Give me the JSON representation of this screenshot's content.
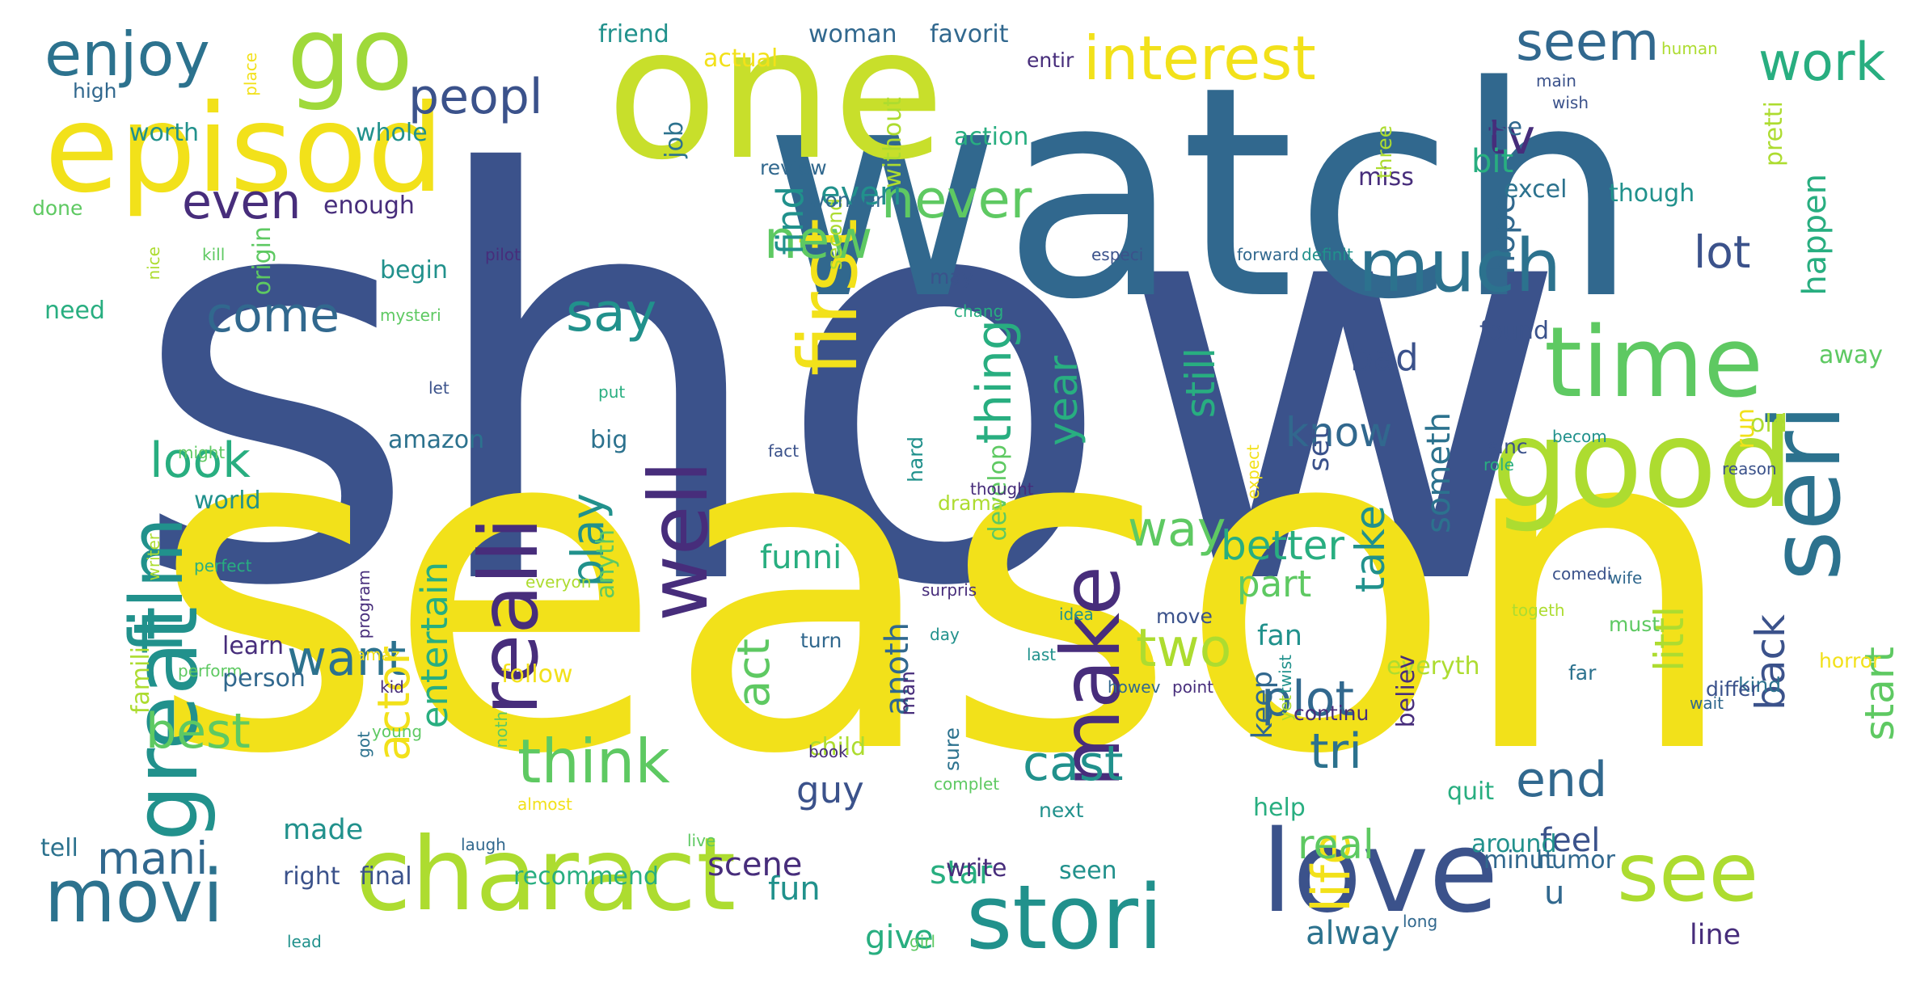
{
  "colors": {
    "background": "#ffffff",
    "palette": [
      "#3b528b",
      "#2c728e",
      "#21918c",
      "#28ae80",
      "#5ec962",
      "#addc30",
      "#f2e11a",
      "#440154",
      "#472d7b",
      "#31688e"
    ]
  },
  "words": [
    {
      "text": "show",
      "color": "#3b528b"
    },
    {
      "text": "season",
      "color": "#f2e11a"
    },
    {
      "text": "watch",
      "color": "#31688e"
    },
    {
      "text": "one",
      "color": "#c8df2b"
    },
    {
      "text": "episod",
      "color": "#f2e11a"
    },
    {
      "text": "go",
      "color": "#9fd93a"
    },
    {
      "text": "charact",
      "color": "#addc30"
    },
    {
      "text": "good",
      "color": "#addc30"
    },
    {
      "text": "love",
      "color": "#3b528b"
    },
    {
      "text": "movi",
      "color": "#2c728e"
    },
    {
      "text": "stori",
      "color": "#21918c"
    },
    {
      "text": "see",
      "color": "#addc30"
    },
    {
      "text": "time",
      "color": "#5ec962"
    },
    {
      "text": "seri",
      "color": "#2c728e"
    },
    {
      "text": "great",
      "color": "#21918c"
    },
    {
      "text": "film",
      "color": "#21918c"
    },
    {
      "text": "realli",
      "color": "#472d7b"
    },
    {
      "text": "well",
      "color": "#472d7b"
    },
    {
      "text": "make",
      "color": "#472d7b"
    },
    {
      "text": "first",
      "color": "#f2e11a"
    },
    {
      "text": "much",
      "color": "#2c728e"
    },
    {
      "text": "enjoy",
      "color": "#2c728e"
    },
    {
      "text": "peopl",
      "color": "#3b528b"
    },
    {
      "text": "interest",
      "color": "#f2e11a"
    },
    {
      "text": "seem",
      "color": "#31688e"
    },
    {
      "text": "work",
      "color": "#28ae80"
    },
    {
      "text": "even",
      "color": "#472d7b"
    },
    {
      "text": "come",
      "color": "#31688e"
    },
    {
      "text": "look",
      "color": "#28ae80"
    },
    {
      "text": "want",
      "color": "#2c728e"
    },
    {
      "text": "best",
      "color": "#5ec962"
    },
    {
      "text": "mani",
      "color": "#31688e"
    },
    {
      "text": "think",
      "color": "#5ec962"
    },
    {
      "text": "say",
      "color": "#21918c"
    },
    {
      "text": "play",
      "color": "#21918c"
    },
    {
      "text": "new",
      "color": "#5ec962"
    },
    {
      "text": "never",
      "color": "#5ec962"
    },
    {
      "text": "thing",
      "color": "#28ae80"
    },
    {
      "text": "year",
      "color": "#28ae80"
    },
    {
      "text": "know",
      "color": "#31688e"
    },
    {
      "text": "tv",
      "color": "#472d7b"
    },
    {
      "text": "lot",
      "color": "#3b528b"
    },
    {
      "text": "bad",
      "color": "#3b528b"
    },
    {
      "text": "way",
      "color": "#5ec962"
    },
    {
      "text": "better",
      "color": "#28ae80"
    },
    {
      "text": "still",
      "color": "#28ae80"
    },
    {
      "text": "take",
      "color": "#21918c"
    },
    {
      "text": "plot",
      "color": "#31688e"
    },
    {
      "text": "tri",
      "color": "#2c728e"
    },
    {
      "text": "two",
      "color": "#addc30"
    },
    {
      "text": "cast",
      "color": "#21918c"
    },
    {
      "text": "end",
      "color": "#31688e"
    },
    {
      "text": "back",
      "color": "#3b528b"
    },
    {
      "text": "start",
      "color": "#5ec962"
    },
    {
      "text": "littl",
      "color": "#addc30"
    },
    {
      "text": "life",
      "color": "#f2e11a"
    },
    {
      "text": "act",
      "color": "#5ec962"
    },
    {
      "text": "actor",
      "color": "#f2e11a"
    },
    {
      "text": "guy",
      "color": "#3b528b"
    },
    {
      "text": "fun",
      "color": "#21918c"
    },
    {
      "text": "find",
      "color": "#21918c"
    },
    {
      "text": "everi",
      "color": "#21918c"
    },
    {
      "text": "hope",
      "color": "#31688e"
    },
    {
      "text": "bit",
      "color": "#28ae80"
    },
    {
      "text": "happen",
      "color": "#28ae80"
    },
    {
      "text": "funni",
      "color": "#28ae80"
    },
    {
      "text": "entertain",
      "color": "#28ae80"
    },
    {
      "text": "part",
      "color": "#5ec962"
    },
    {
      "text": "fan",
      "color": "#21918c"
    },
    {
      "text": "keep",
      "color": "#31688e"
    },
    {
      "text": "real",
      "color": "#5ec962"
    },
    {
      "text": "feel",
      "color": "#3b528b"
    },
    {
      "text": "u",
      "color": "#31688e"
    },
    {
      "text": "alway",
      "color": "#2c728e"
    },
    {
      "text": "line",
      "color": "#472d7b"
    },
    {
      "text": "scene",
      "color": "#472d7b"
    },
    {
      "text": "star",
      "color": "#28ae80"
    },
    {
      "text": "give",
      "color": "#28ae80"
    },
    {
      "text": "made",
      "color": "#21918c"
    },
    {
      "text": "enough",
      "color": "#472d7b"
    },
    {
      "text": "someth",
      "color": "#2c728e"
    },
    {
      "text": "anoth",
      "color": "#31688e"
    },
    {
      "text": "set",
      "color": "#3b528b"
    },
    {
      "text": "famili",
      "color": "#addc30"
    },
    {
      "text": "world",
      "color": "#21918c"
    },
    {
      "text": "amazon",
      "color": "#2c728e"
    },
    {
      "text": "begin",
      "color": "#21918c"
    },
    {
      "text": "need",
      "color": "#28ae80"
    },
    {
      "text": "done",
      "color": "#5ec962"
    },
    {
      "text": "high",
      "color": "#31688e"
    },
    {
      "text": "worth",
      "color": "#21918c"
    },
    {
      "text": "whole",
      "color": "#21918c"
    },
    {
      "text": "origin",
      "color": "#5ec962"
    },
    {
      "text": "job",
      "color": "#2c728e"
    },
    {
      "text": "friend",
      "color": "#21918c"
    },
    {
      "text": "actual",
      "color": "#f2e11a"
    },
    {
      "text": "woman",
      "color": "#31688e"
    },
    {
      "text": "favorit",
      "color": "#31688e"
    },
    {
      "text": "entir",
      "color": "#472d7b"
    },
    {
      "text": "review",
      "color": "#31688e"
    },
    {
      "text": "second",
      "color": "#addc30"
    },
    {
      "text": "without",
      "color": "#addc30"
    },
    {
      "text": "action",
      "color": "#28ae80"
    },
    {
      "text": "miss",
      "color": "#472d7b"
    },
    {
      "text": "use",
      "color": "#31688e"
    },
    {
      "text": "three",
      "color": "#addc30"
    },
    {
      "text": "excel",
      "color": "#2c728e"
    },
    {
      "text": "though",
      "color": "#21918c"
    },
    {
      "text": "pretti",
      "color": "#addc30"
    },
    {
      "text": "wonder",
      "color": "#31688e"
    },
    {
      "text": "human",
      "color": "#addc30"
    },
    {
      "text": "main",
      "color": "#3b528b"
    },
    {
      "text": "wish",
      "color": "#3b528b"
    },
    {
      "text": "place",
      "color": "#f2e11a"
    },
    {
      "text": "especi",
      "color": "#3b528b"
    },
    {
      "text": "forward",
      "color": "#31688e"
    },
    {
      "text": "definit",
      "color": "#21918c"
    },
    {
      "text": "pilot",
      "color": "#472d7b"
    },
    {
      "text": "kill",
      "color": "#5ec962"
    },
    {
      "text": "nice",
      "color": "#addc30"
    },
    {
      "text": "may",
      "color": "#3b528b"
    },
    {
      "text": "chang",
      "color": "#28ae80"
    },
    {
      "text": "found",
      "color": "#3b528b"
    },
    {
      "text": "mysteri",
      "color": "#5ec962"
    },
    {
      "text": "let",
      "color": "#3b528b"
    },
    {
      "text": "put",
      "color": "#28ae80"
    },
    {
      "text": "big",
      "color": "#2c728e"
    },
    {
      "text": "hard",
      "color": "#21918c"
    },
    {
      "text": "develop",
      "color": "#5ec962"
    },
    {
      "text": "drama",
      "color": "#addc30"
    },
    {
      "text": "becom",
      "color": "#21918c"
    },
    {
      "text": "away",
      "color": "#5ec962"
    },
    {
      "text": "old",
      "color": "#addc30"
    },
    {
      "text": "sinc",
      "color": "#3b528b"
    },
    {
      "text": "role",
      "color": "#28ae80"
    },
    {
      "text": "reason",
      "color": "#3b528b"
    },
    {
      "text": "expect",
      "color": "#f2e11a"
    },
    {
      "text": "might",
      "color": "#5ec962"
    },
    {
      "text": "fact",
      "color": "#3b528b"
    },
    {
      "text": "run",
      "color": "#f2e11a"
    },
    {
      "text": "thought",
      "color": "#472d7b"
    },
    {
      "text": "anyth",
      "color": "#5ec962"
    },
    {
      "text": "writer",
      "color": "#addc30"
    },
    {
      "text": "perfect",
      "color": "#28ae80"
    },
    {
      "text": "wife",
      "color": "#31688e"
    },
    {
      "text": "everyon",
      "color": "#addc30"
    },
    {
      "text": "surpris",
      "color": "#472d7b"
    },
    {
      "text": "idea",
      "color": "#21918c"
    },
    {
      "text": "move",
      "color": "#3b528b"
    },
    {
      "text": "comedi",
      "color": "#3b528b"
    },
    {
      "text": "program",
      "color": "#472d7b"
    },
    {
      "text": "togeth",
      "color": "#addc30"
    },
    {
      "text": "must",
      "color": "#5ec962"
    },
    {
      "text": "far",
      "color": "#2c728e"
    },
    {
      "text": "horror",
      "color": "#f2e11a"
    },
    {
      "text": "kind",
      "color": "#2c728e"
    },
    {
      "text": "last",
      "color": "#21918c"
    },
    {
      "text": "amaz",
      "color": "#f2e11a"
    },
    {
      "text": "perform",
      "color": "#5ec962"
    },
    {
      "text": "man",
      "color": "#472d7b"
    },
    {
      "text": "learn",
      "color": "#472d7b"
    },
    {
      "text": "turn",
      "color": "#31688e"
    },
    {
      "text": "day",
      "color": "#21918c"
    },
    {
      "text": "everyth",
      "color": "#addc30"
    },
    {
      "text": "believ",
      "color": "#472d7b"
    },
    {
      "text": "differ",
      "color": "#3b528b"
    },
    {
      "text": "kid",
      "color": "#472d7b"
    },
    {
      "text": "twist",
      "color": "#21918c"
    },
    {
      "text": "person",
      "color": "#31688e"
    },
    {
      "text": "follow",
      "color": "#f2e11a"
    },
    {
      "text": "howev",
      "color": "#31688e"
    },
    {
      "text": "point",
      "color": "#472d7b"
    },
    {
      "text": "continu",
      "color": "#472d7b"
    },
    {
      "text": "got",
      "color": "#2c728e"
    },
    {
      "text": "young",
      "color": "#5ec962"
    },
    {
      "text": "noth",
      "color": "#5ec962"
    },
    {
      "text": "complet",
      "color": "#5ec962"
    },
    {
      "text": "yet",
      "color": "#addc30"
    },
    {
      "text": "wait",
      "color": "#31688e"
    },
    {
      "text": "child",
      "color": "#addc30"
    },
    {
      "text": "sure",
      "color": "#2c728e"
    },
    {
      "text": "book",
      "color": "#472d7b"
    },
    {
      "text": "almost",
      "color": "#f2e11a"
    },
    {
      "text": "next",
      "color": "#21918c"
    },
    {
      "text": "quit",
      "color": "#28ae80"
    },
    {
      "text": "help",
      "color": "#28ae80"
    },
    {
      "text": "around",
      "color": "#21918c"
    },
    {
      "text": "tell",
      "color": "#2c728e"
    },
    {
      "text": "laugh",
      "color": "#31688e"
    },
    {
      "text": "live",
      "color": "#5ec962"
    },
    {
      "text": "write",
      "color": "#472d7b"
    },
    {
      "text": "right",
      "color": "#3b528b"
    },
    {
      "text": "final",
      "color": "#3b528b"
    },
    {
      "text": "recommend",
      "color": "#28ae80"
    },
    {
      "text": "seen",
      "color": "#21918c"
    },
    {
      "text": "minut",
      "color": "#31688e"
    },
    {
      "text": "humor",
      "color": "#31688e"
    },
    {
      "text": "lead",
      "color": "#21918c"
    },
    {
      "text": "girl",
      "color": "#5ec962"
    },
    {
      "text": "long",
      "color": "#31688e"
    }
  ]
}
